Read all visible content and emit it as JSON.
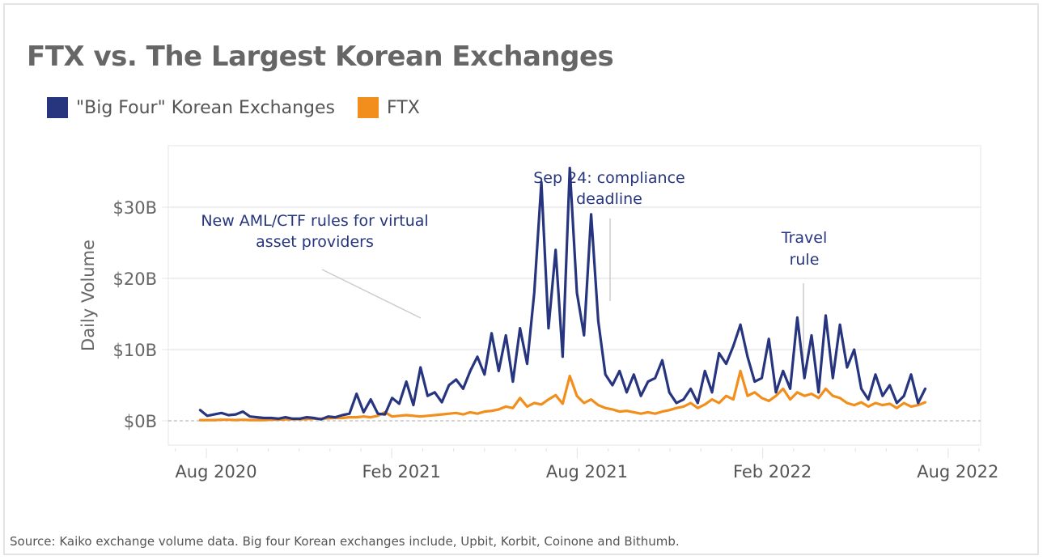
{
  "title": "FTX vs. The Largest Korean Exchanges",
  "legend": [
    {
      "label": "\"Big Four\" Korean Exchanges",
      "color": "#27357f"
    },
    {
      "label": "FTX",
      "color": "#f28e1c"
    }
  ],
  "source": "Source: Kaiko exchange volume data. Big four Korean exchanges include, Upbit, Korbit, Coinone and Bithumb.",
  "chart_data": {
    "type": "line",
    "title": "FTX vs. The Largest Korean Exchanges",
    "xlabel": "",
    "ylabel": "Daily Volume",
    "ylim": [
      -3.5,
      38
    ],
    "yticks": [
      0,
      10,
      20,
      30
    ],
    "ytick_labels": [
      "$0B",
      "$10B",
      "$20B",
      "$30B"
    ],
    "xticks": [
      "Aug 2020",
      "Feb 2021",
      "Aug 2021",
      "Feb 2022",
      "Aug 2022"
    ],
    "x_unit": "months since Aug 1 2020",
    "xtick_positions": [
      0,
      6,
      12,
      18,
      24
    ],
    "xlim": [
      -1.2,
      25.3
    ],
    "grid": true,
    "legend_position": "top-left",
    "x": [
      -0.2,
      0.03,
      0.26,
      0.49,
      0.72,
      0.95,
      1.18,
      1.41,
      1.64,
      1.87,
      2.1,
      2.33,
      2.56,
      2.79,
      3.02,
      3.25,
      3.48,
      3.71,
      3.94,
      4.17,
      4.4,
      4.63,
      4.86,
      5.09,
      5.32,
      5.55,
      5.78,
      6.01,
      6.24,
      6.47,
      6.7,
      6.93,
      7.16,
      7.39,
      7.62,
      7.85,
      8.08,
      8.31,
      8.54,
      8.77,
      9.0,
      9.23,
      9.46,
      9.69,
      9.92,
      10.15,
      10.38,
      10.61,
      10.84,
      11.07,
      11.3,
      11.53,
      11.76,
      11.99,
      12.22,
      12.45,
      12.68,
      12.91,
      13.14,
      13.37,
      13.6,
      13.83,
      14.06,
      14.29,
      14.52,
      14.75,
      14.98,
      15.21,
      15.44,
      15.67,
      15.9,
      16.13,
      16.36,
      16.59,
      16.82,
      17.05,
      17.28,
      17.51,
      17.74,
      17.97,
      18.2,
      18.43,
      18.66,
      18.89,
      19.12,
      19.35,
      19.58,
      19.81,
      20.04,
      20.27,
      20.5,
      20.73,
      20.96,
      21.19,
      21.42,
      21.65,
      21.88,
      22.11,
      22.34,
      22.57,
      22.8,
      23.03,
      23.26
    ],
    "series": [
      {
        "name": "\"Big Four\" Korean Exchanges",
        "color": "#27357f",
        "values": [
          1.5,
          0.7,
          0.9,
          1.1,
          0.8,
          0.9,
          1.3,
          0.6,
          0.5,
          0.4,
          0.4,
          0.3,
          0.5,
          0.3,
          0.3,
          0.5,
          0.4,
          0.2,
          0.6,
          0.5,
          0.8,
          1.0,
          3.8,
          1.2,
          3.0,
          1.0,
          0.9,
          3.2,
          2.4,
          5.5,
          2.2,
          7.5,
          3.5,
          4.0,
          2.6,
          5.0,
          5.8,
          4.5,
          7.0,
          9.0,
          6.5,
          12.3,
          7.0,
          12.0,
          5.5,
          13.0,
          8.0,
          18.0,
          33.5,
          13.0,
          24.0,
          9.0,
          35.5,
          18.0,
          12.0,
          29.0,
          14.0,
          6.5,
          5.0,
          7.0,
          4.0,
          6.5,
          3.5,
          5.5,
          6.0,
          8.5,
          4.0,
          2.5,
          3.0,
          4.5,
          2.5,
          7.0,
          4.0,
          9.5,
          8.0,
          10.5,
          13.5,
          9.0,
          5.5,
          6.0,
          11.5,
          4.0,
          7.0,
          4.5,
          14.5,
          6.0,
          12.0,
          4.0,
          14.8,
          6.0,
          13.5,
          7.5,
          10.0,
          4.5,
          3.0,
          6.5,
          3.5,
          5.0,
          2.5,
          3.5,
          6.5,
          2.5,
          4.5,
          3.0
        ]
      },
      {
        "name": "FTX",
        "color": "#f28e1c",
        "values": [
          0.1,
          0.1,
          0.1,
          0.15,
          0.15,
          0.1,
          0.15,
          0.1,
          0.1,
          0.1,
          0.15,
          0.15,
          0.2,
          0.2,
          0.2,
          0.25,
          0.3,
          0.3,
          0.35,
          0.4,
          0.4,
          0.5,
          0.5,
          0.6,
          0.5,
          0.7,
          1.2,
          0.6,
          0.7,
          0.8,
          0.7,
          0.6,
          0.7,
          0.8,
          0.9,
          1.0,
          1.1,
          0.9,
          1.2,
          1.0,
          1.3,
          1.4,
          1.6,
          2.0,
          1.8,
          3.2,
          2.0,
          2.5,
          2.3,
          3.0,
          3.6,
          2.4,
          6.3,
          3.5,
          2.5,
          3.0,
          2.2,
          1.8,
          1.6,
          1.3,
          1.4,
          1.2,
          1.0,
          1.2,
          1.0,
          1.3,
          1.5,
          1.8,
          2.0,
          2.5,
          1.8,
          2.3,
          3.0,
          2.5,
          3.5,
          3.0,
          7.0,
          3.5,
          4.0,
          3.2,
          2.8,
          3.5,
          4.5,
          3.0,
          4.0,
          3.5,
          3.8,
          3.2,
          4.5,
          3.5,
          3.2,
          2.5,
          2.2,
          2.6,
          2.0,
          2.5,
          2.2,
          2.4,
          1.8,
          2.5,
          2.0,
          2.2,
          2.6,
          1.9
        ]
      }
    ],
    "annotations": [
      {
        "text": "New AML/CTF rules for virtual asset providers",
        "lines": [
          "New AML/CTF rules for virtual",
          "asset providers"
        ],
        "at_x": 8.0
      },
      {
        "text": "Sep 24: compliance deadline",
        "lines": [
          "Sep 24: compliance",
          "deadline"
        ],
        "at_x": 13.1
      },
      {
        "text": "Travel rule",
        "lines": [
          "Travel",
          "rule"
        ],
        "at_x": 19.1
      }
    ]
  }
}
